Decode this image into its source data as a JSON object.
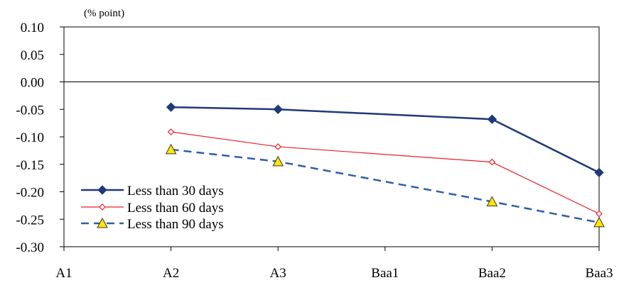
{
  "chart_data": {
    "type": "line",
    "unit_label": "(% point)",
    "categories": [
      "A1",
      "A2",
      "A3",
      "Baa1",
      "Baa2",
      "Baa3"
    ],
    "ylim": [
      -0.3,
      0.1
    ],
    "yticks": [
      "0.10",
      "0.05",
      "0.00",
      "-0.05",
      "-0.10",
      "-0.15",
      "-0.20",
      "-0.25",
      "-0.30"
    ],
    "ytick_values": [
      0.1,
      0.05,
      0.0,
      -0.05,
      -0.1,
      -0.15,
      -0.2,
      -0.25,
      -0.3
    ],
    "grid": false,
    "zero_line": true,
    "legend_position": "bottom-left",
    "series": [
      {
        "name": "Less than 30 days",
        "values": [
          null,
          -0.046,
          -0.05,
          null,
          -0.068,
          -0.165
        ],
        "color": "#1f3a7a",
        "marker": "diamond-filled",
        "dash": "solid"
      },
      {
        "name": "Less than 60 days",
        "values": [
          null,
          -0.091,
          -0.118,
          null,
          -0.146,
          -0.24
        ],
        "color": "#e8202a",
        "marker": "diamond-open",
        "dash": "solid"
      },
      {
        "name": "Less than 90 days",
        "values": [
          null,
          -0.123,
          -0.145,
          null,
          -0.218,
          -0.256
        ],
        "color": "#2e5fa8",
        "marker": "triangle-yellow",
        "dash": "dashed"
      }
    ]
  }
}
